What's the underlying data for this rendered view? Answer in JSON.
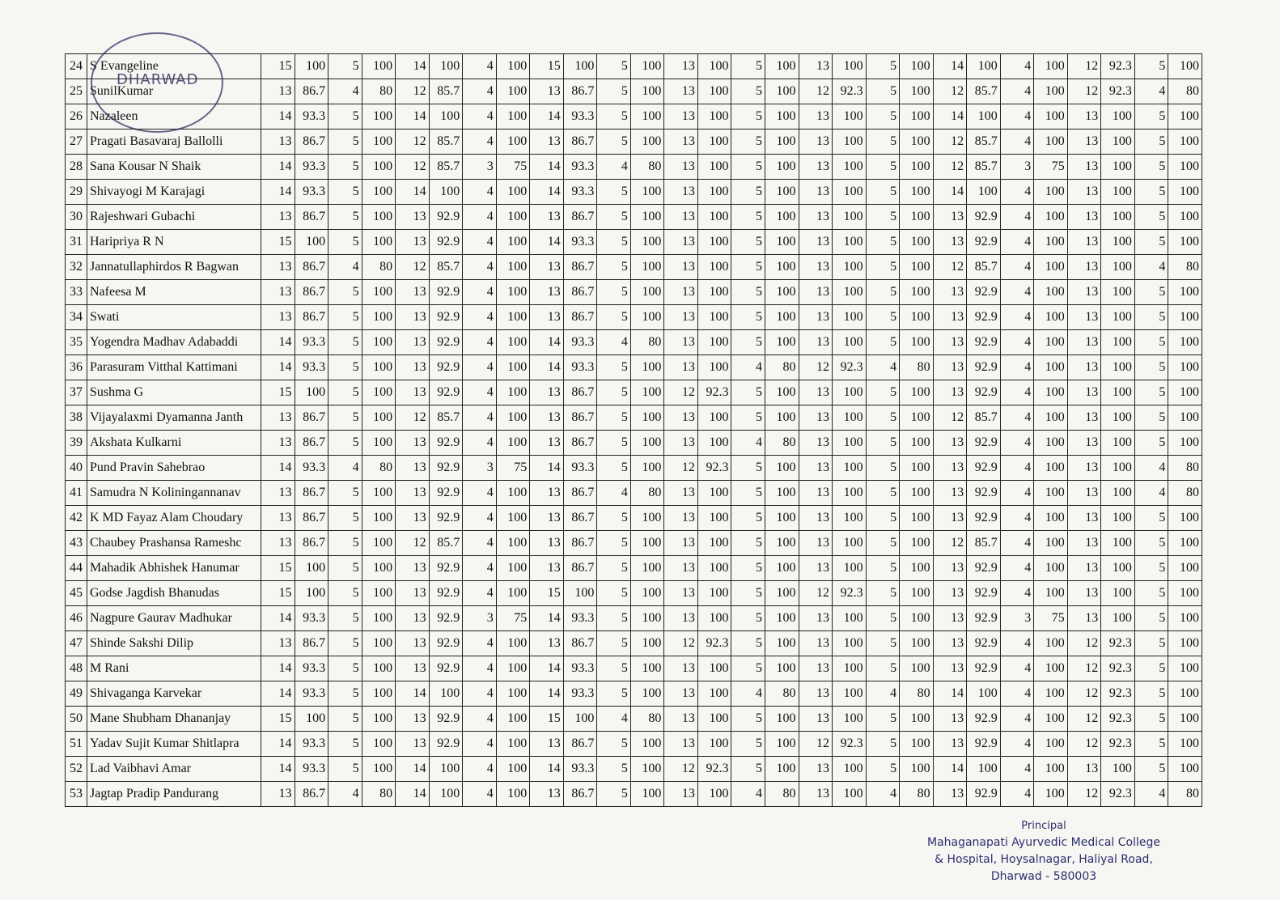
{
  "stamp": "DHARWAD",
  "table": {
    "rows": [
      [
        24,
        "S Evangeline",
        15,
        100,
        5,
        100,
        14,
        100,
        4,
        100,
        15,
        100,
        5,
        100,
        13,
        100,
        5,
        100,
        13,
        100,
        5,
        100,
        14,
        100,
        4,
        100,
        12,
        92.3,
        5,
        100
      ],
      [
        25,
        "SunilKumar",
        13,
        86.7,
        4,
        80,
        12,
        85.7,
        4,
        100,
        13,
        86.7,
        5,
        100,
        13,
        100,
        5,
        100,
        12,
        92.3,
        5,
        100,
        12,
        85.7,
        4,
        100,
        12,
        92.3,
        4,
        80
      ],
      [
        26,
        "Nazaleen",
        14,
        93.3,
        5,
        100,
        14,
        100,
        4,
        100,
        14,
        93.3,
        5,
        100,
        13,
        100,
        5,
        100,
        13,
        100,
        5,
        100,
        14,
        100,
        4,
        100,
        13,
        100,
        5,
        100
      ],
      [
        27,
        "Pragati Basavaraj Ballolli",
        13,
        86.7,
        5,
        100,
        12,
        85.7,
        4,
        100,
        13,
        86.7,
        5,
        100,
        13,
        100,
        5,
        100,
        13,
        100,
        5,
        100,
        12,
        85.7,
        4,
        100,
        13,
        100,
        5,
        100
      ],
      [
        28,
        "Sana Kousar N Shaik",
        14,
        93.3,
        5,
        100,
        12,
        85.7,
        3,
        75,
        14,
        93.3,
        4,
        80,
        13,
        100,
        5,
        100,
        13,
        100,
        5,
        100,
        12,
        85.7,
        3,
        75,
        13,
        100,
        5,
        100
      ],
      [
        29,
        "Shivayogi M Karajagi",
        14,
        93.3,
        5,
        100,
        14,
        100,
        4,
        100,
        14,
        93.3,
        5,
        100,
        13,
        100,
        5,
        100,
        13,
        100,
        5,
        100,
        14,
        100,
        4,
        100,
        13,
        100,
        5,
        100
      ],
      [
        30,
        "Rajeshwari Gubachi",
        13,
        86.7,
        5,
        100,
        13,
        92.9,
        4,
        100,
        13,
        86.7,
        5,
        100,
        13,
        100,
        5,
        100,
        13,
        100,
        5,
        100,
        13,
        92.9,
        4,
        100,
        13,
        100,
        5,
        100
      ],
      [
        31,
        "Haripriya R N",
        15,
        100,
        5,
        100,
        13,
        92.9,
        4,
        100,
        14,
        93.3,
        5,
        100,
        13,
        100,
        5,
        100,
        13,
        100,
        5,
        100,
        13,
        92.9,
        4,
        100,
        13,
        100,
        5,
        100
      ],
      [
        32,
        "Jannatullaphirdos R Bagwan",
        13,
        86.7,
        4,
        80,
        12,
        85.7,
        4,
        100,
        13,
        86.7,
        5,
        100,
        13,
        100,
        5,
        100,
        13,
        100,
        5,
        100,
        12,
        85.7,
        4,
        100,
        13,
        100,
        4,
        80
      ],
      [
        33,
        "Nafeesa M",
        13,
        86.7,
        5,
        100,
        13,
        92.9,
        4,
        100,
        13,
        86.7,
        5,
        100,
        13,
        100,
        5,
        100,
        13,
        100,
        5,
        100,
        13,
        92.9,
        4,
        100,
        13,
        100,
        5,
        100
      ],
      [
        34,
        "Swati",
        13,
        86.7,
        5,
        100,
        13,
        92.9,
        4,
        100,
        13,
        86.7,
        5,
        100,
        13,
        100,
        5,
        100,
        13,
        100,
        5,
        100,
        13,
        92.9,
        4,
        100,
        13,
        100,
        5,
        100
      ],
      [
        35,
        "Yogendra Madhav Adabaddi",
        14,
        93.3,
        5,
        100,
        13,
        92.9,
        4,
        100,
        14,
        93.3,
        4,
        80,
        13,
        100,
        5,
        100,
        13,
        100,
        5,
        100,
        13,
        92.9,
        4,
        100,
        13,
        100,
        5,
        100
      ],
      [
        36,
        "Parasuram Vitthal Kattimani",
        14,
        93.3,
        5,
        100,
        13,
        92.9,
        4,
        100,
        14,
        93.3,
        5,
        100,
        13,
        100,
        4,
        80,
        12,
        92.3,
        4,
        80,
        13,
        92.9,
        4,
        100,
        13,
        100,
        5,
        100
      ],
      [
        37,
        "Sushma G",
        15,
        100,
        5,
        100,
        13,
        92.9,
        4,
        100,
        13,
        86.7,
        5,
        100,
        12,
        92.3,
        5,
        100,
        13,
        100,
        5,
        100,
        13,
        92.9,
        4,
        100,
        13,
        100,
        5,
        100
      ],
      [
        38,
        "Vijayalaxmi Dyamanna Janth",
        13,
        86.7,
        5,
        100,
        12,
        85.7,
        4,
        100,
        13,
        86.7,
        5,
        100,
        13,
        100,
        5,
        100,
        13,
        100,
        5,
        100,
        12,
        85.7,
        4,
        100,
        13,
        100,
        5,
        100
      ],
      [
        39,
        "Akshata Kulkarni",
        13,
        86.7,
        5,
        100,
        13,
        92.9,
        4,
        100,
        13,
        86.7,
        5,
        100,
        13,
        100,
        4,
        80,
        13,
        100,
        5,
        100,
        13,
        92.9,
        4,
        100,
        13,
        100,
        5,
        100
      ],
      [
        40,
        "Pund Pravin Sahebrao",
        14,
        93.3,
        4,
        80,
        13,
        92.9,
        3,
        75,
        14,
        93.3,
        5,
        100,
        12,
        92.3,
        5,
        100,
        13,
        100,
        5,
        100,
        13,
        92.9,
        4,
        100,
        13,
        100,
        4,
        80
      ],
      [
        41,
        "Samudra N Koliningannanav",
        13,
        86.7,
        5,
        100,
        13,
        92.9,
        4,
        100,
        13,
        86.7,
        4,
        80,
        13,
        100,
        5,
        100,
        13,
        100,
        5,
        100,
        13,
        92.9,
        4,
        100,
        13,
        100,
        4,
        80
      ],
      [
        42,
        "K MD Fayaz Alam Choudary",
        13,
        86.7,
        5,
        100,
        13,
        92.9,
        4,
        100,
        13,
        86.7,
        5,
        100,
        13,
        100,
        5,
        100,
        13,
        100,
        5,
        100,
        13,
        92.9,
        4,
        100,
        13,
        100,
        5,
        100
      ],
      [
        43,
        "Chaubey Prashansa Rameshc",
        13,
        86.7,
        5,
        100,
        12,
        85.7,
        4,
        100,
        13,
        86.7,
        5,
        100,
        13,
        100,
        5,
        100,
        13,
        100,
        5,
        100,
        12,
        85.7,
        4,
        100,
        13,
        100,
        5,
        100
      ],
      [
        44,
        "Mahadik Abhishek Hanumar",
        15,
        100,
        5,
        100,
        13,
        92.9,
        4,
        100,
        13,
        86.7,
        5,
        100,
        13,
        100,
        5,
        100,
        13,
        100,
        5,
        100,
        13,
        92.9,
        4,
        100,
        13,
        100,
        5,
        100
      ],
      [
        45,
        "Godse Jagdish Bhanudas",
        15,
        100,
        5,
        100,
        13,
        92.9,
        4,
        100,
        15,
        100,
        5,
        100,
        13,
        100,
        5,
        100,
        12,
        92.3,
        5,
        100,
        13,
        92.9,
        4,
        100,
        13,
        100,
        5,
        100
      ],
      [
        46,
        "Nagpure Gaurav Madhukar",
        14,
        93.3,
        5,
        100,
        13,
        92.9,
        3,
        75,
        14,
        93.3,
        5,
        100,
        13,
        100,
        5,
        100,
        13,
        100,
        5,
        100,
        13,
        92.9,
        3,
        75,
        13,
        100,
        5,
        100
      ],
      [
        47,
        "Shinde Sakshi Dilip",
        13,
        86.7,
        5,
        100,
        13,
        92.9,
        4,
        100,
        13,
        86.7,
        5,
        100,
        12,
        92.3,
        5,
        100,
        13,
        100,
        5,
        100,
        13,
        92.9,
        4,
        100,
        12,
        92.3,
        5,
        100
      ],
      [
        48,
        "M Rani",
        14,
        93.3,
        5,
        100,
        13,
        92.9,
        4,
        100,
        14,
        93.3,
        5,
        100,
        13,
        100,
        5,
        100,
        13,
        100,
        5,
        100,
        13,
        92.9,
        4,
        100,
        12,
        92.3,
        5,
        100
      ],
      [
        49,
        "Shivaganga Karvekar",
        14,
        93.3,
        5,
        100,
        14,
        100,
        4,
        100,
        14,
        93.3,
        5,
        100,
        13,
        100,
        4,
        80,
        13,
        100,
        4,
        80,
        14,
        100,
        4,
        100,
        12,
        92.3,
        5,
        100
      ],
      [
        50,
        "Mane Shubham Dhananjay",
        15,
        100,
        5,
        100,
        13,
        92.9,
        4,
        100,
        15,
        100,
        4,
        80,
        13,
        100,
        5,
        100,
        13,
        100,
        5,
        100,
        13,
        92.9,
        4,
        100,
        12,
        92.3,
        5,
        100
      ],
      [
        51,
        "Yadav Sujit Kumar Shitlapra",
        14,
        93.3,
        5,
        100,
        13,
        92.9,
        4,
        100,
        13,
        86.7,
        5,
        100,
        13,
        100,
        5,
        100,
        12,
        92.3,
        5,
        100,
        13,
        92.9,
        4,
        100,
        12,
        92.3,
        5,
        100
      ],
      [
        52,
        "Lad Vaibhavi Amar",
        14,
        93.3,
        5,
        100,
        14,
        100,
        4,
        100,
        14,
        93.3,
        5,
        100,
        12,
        92.3,
        5,
        100,
        13,
        100,
        5,
        100,
        14,
        100,
        4,
        100,
        13,
        100,
        5,
        100
      ],
      [
        53,
        "Jagtap Pradip Pandurang",
        13,
        86.7,
        4,
        80,
        14,
        100,
        4,
        100,
        13,
        86.7,
        5,
        100,
        13,
        100,
        4,
        80,
        13,
        100,
        4,
        80,
        13,
        92.9,
        4,
        100,
        12,
        92.3,
        4,
        80
      ]
    ]
  },
  "footer": {
    "signature": "Principal",
    "lines": [
      "Mahaganapati Ayurvedic Medical College",
      "& Hospital, Hoysalnagar, Haliyal Road,",
      "Dharwad - 580003"
    ]
  }
}
